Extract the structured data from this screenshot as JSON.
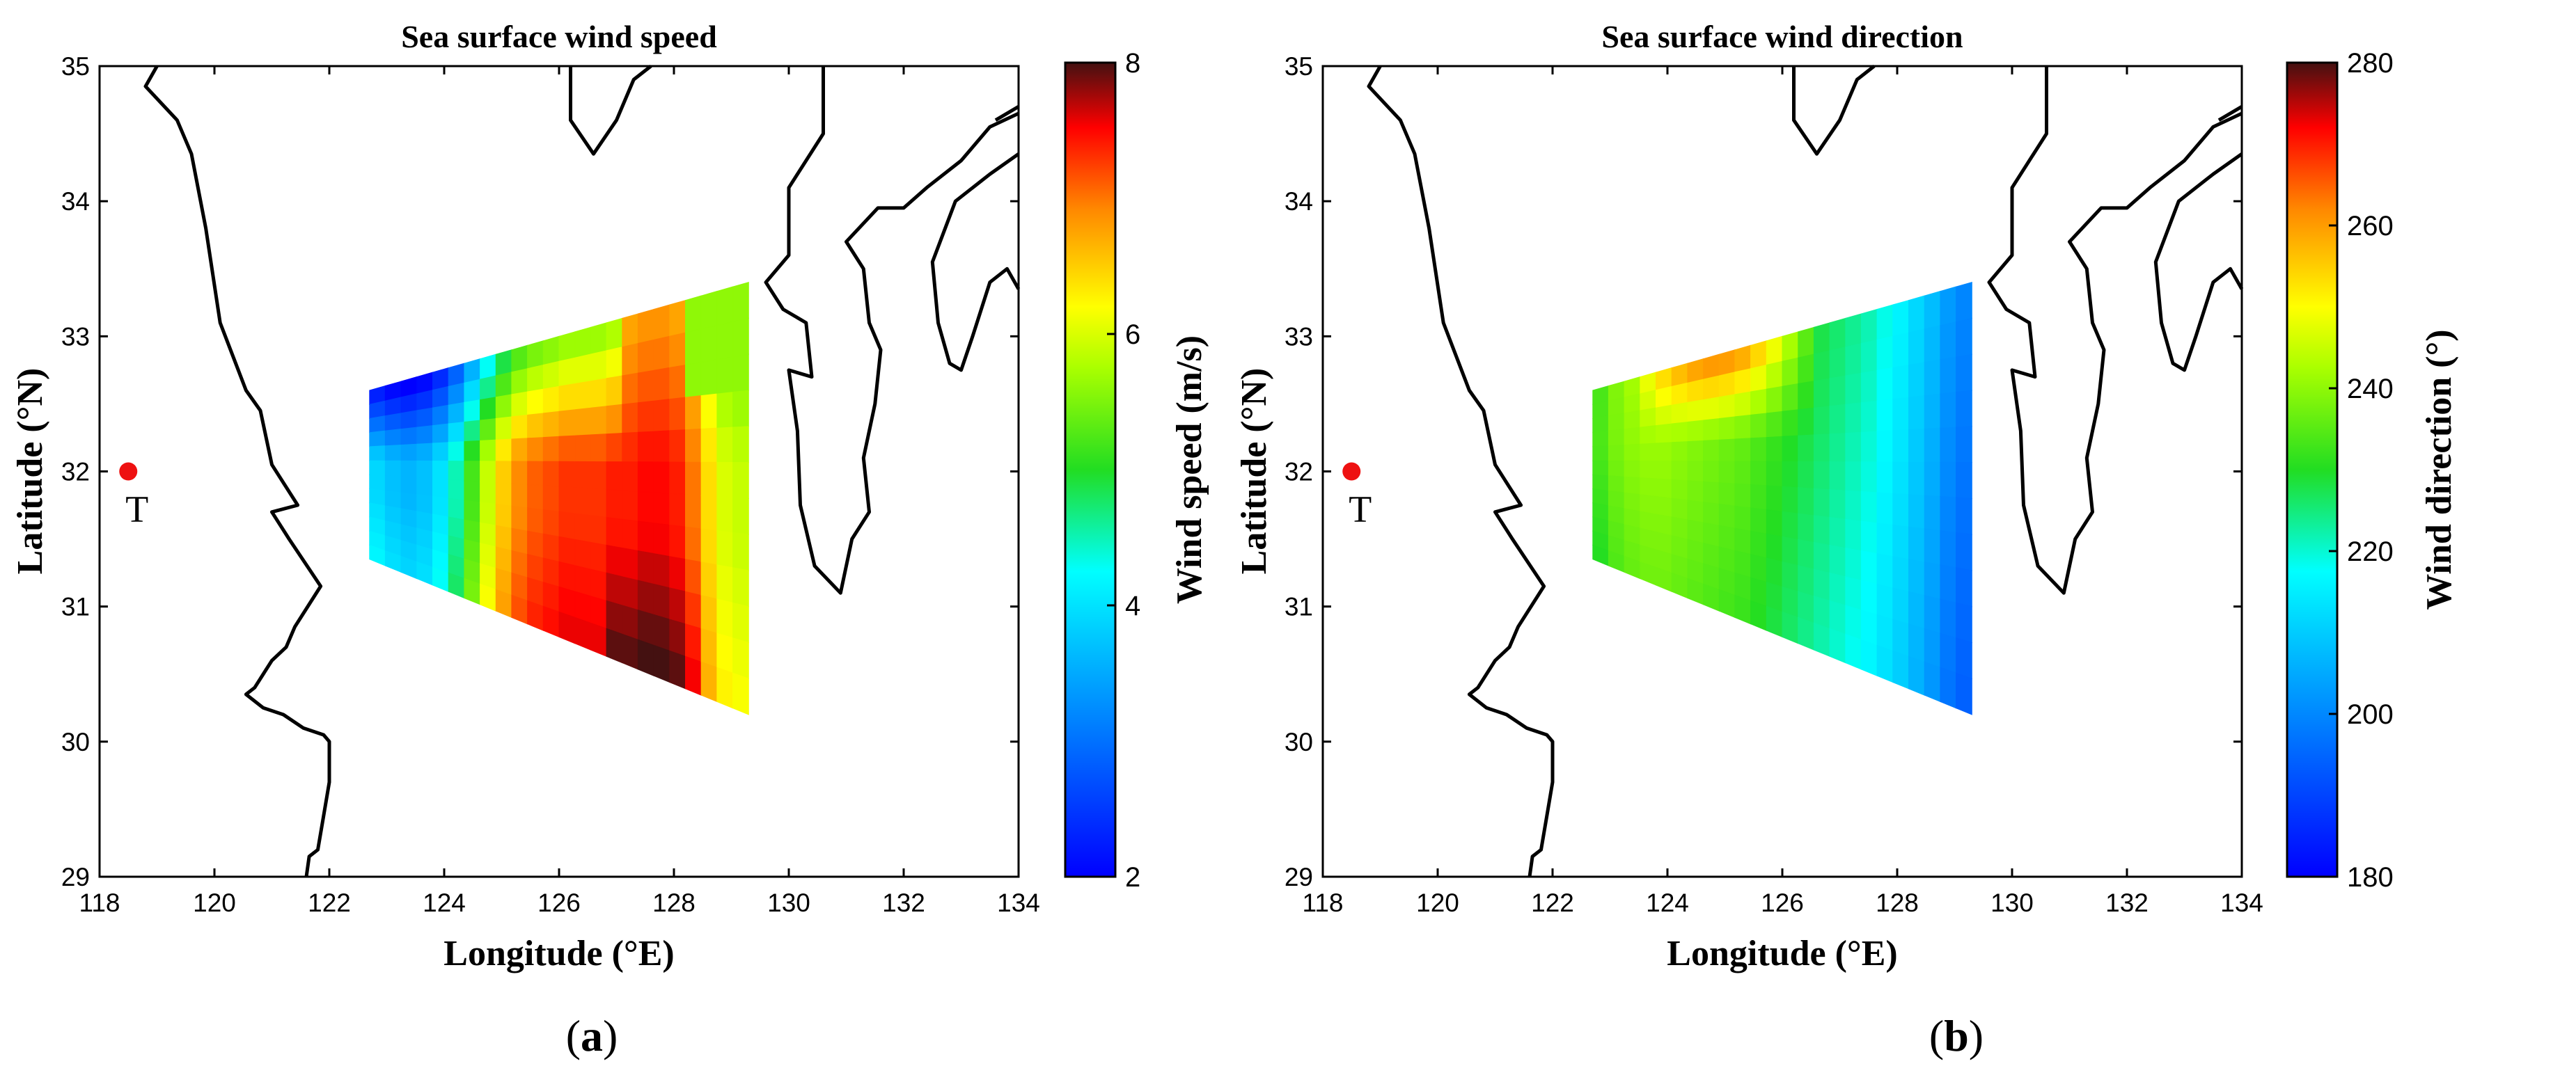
{
  "chart_data": [
    {
      "type": "heatmap",
      "panel": "(a)",
      "panel_letter": "a",
      "title": "Sea surface wind speed",
      "xlabel": "Longitude (°E)",
      "ylabel": "Latitude (°N)",
      "xlim": [
        118,
        134
      ],
      "ylim": [
        29,
        35
      ],
      "xticks": [
        "118",
        "120",
        "122",
        "124",
        "126",
        "128",
        "130",
        "132",
        "134"
      ],
      "yticks": [
        "29",
        "30",
        "31",
        "32",
        "33",
        "34",
        "35"
      ],
      "colorbar": {
        "label": "Wind speed (m/s)",
        "range": [
          2,
          8
        ],
        "ticks": [
          "2",
          "4",
          "6",
          "8"
        ],
        "colormap": "jet"
      },
      "marker": {
        "label": "T",
        "lon": 118.5,
        "lat": 32.0,
        "color": "#ee1111"
      },
      "field": {
        "corners": {
          "nw": [
            122.7,
            32.6
          ],
          "ne": [
            129.3,
            33.4
          ],
          "se": [
            129.3,
            30.2
          ],
          "sw": [
            122.7,
            31.35
          ]
        },
        "columns": 24,
        "rows": 12,
        "column_profile": [
          3.9,
          3.7,
          3.6,
          3.7,
          4.0,
          4.5,
          5.2,
          5.9,
          6.5,
          6.9,
          7.1,
          7.2,
          7.3,
          7.3,
          7.3,
          7.4,
          7.4,
          7.5,
          7.5,
          7.4,
          7.0,
          6.4,
          6.0,
          5.9
        ],
        "top_reduction": 1.8,
        "bottom_increase": 1.5
      },
      "grid": false
    },
    {
      "type": "heatmap",
      "panel": "(b)",
      "panel_letter": "b",
      "title": "Sea surface wind direction",
      "xlabel": "Longitude (°E)",
      "ylabel": "Latitude (°N)",
      "xlim": [
        118,
        134
      ],
      "ylim": [
        29,
        35
      ],
      "xticks": [
        "118",
        "120",
        "122",
        "124",
        "126",
        "128",
        "130",
        "132",
        "134"
      ],
      "yticks": [
        "29",
        "30",
        "31",
        "32",
        "33",
        "34",
        "35"
      ],
      "colorbar": {
        "label": "Wind direction (°)",
        "range": [
          180,
          280
        ],
        "ticks": [
          "180",
          "200",
          "220",
          "240",
          "260",
          "280"
        ],
        "colormap": "jet"
      },
      "marker": {
        "label": "T",
        "lon": 118.5,
        "lat": 32.0,
        "color": "#ee1111"
      },
      "field": {
        "corners": {
          "nw": [
            122.7,
            32.6
          ],
          "ne": [
            129.3,
            33.4
          ],
          "se": [
            129.3,
            30.2
          ],
          "sw": [
            122.7,
            31.35
          ]
        },
        "columns": 24,
        "rows": 12,
        "column_profile": [
          236,
          240,
          242,
          243,
          243,
          242,
          241,
          240,
          239,
          238,
          236,
          234,
          232,
          230,
          228,
          226,
          224,
          222,
          219,
          216,
          212,
          208,
          203,
          200
        ],
        "top_boost": 24,
        "bottom_drop": 6
      },
      "grid": false
    }
  ],
  "coastline": {
    "china": [
      [
        119.0,
        35.0
      ],
      [
        118.8,
        34.85
      ],
      [
        119.35,
        34.6
      ],
      [
        119.6,
        34.35
      ],
      [
        119.85,
        33.8
      ],
      [
        120.1,
        33.1
      ],
      [
        120.55,
        32.6
      ],
      [
        120.8,
        32.45
      ],
      [
        121.0,
        32.05
      ],
      [
        121.45,
        31.75
      ],
      [
        121.0,
        31.7
      ],
      [
        121.3,
        31.5
      ],
      [
        121.85,
        31.15
      ],
      [
        121.4,
        30.85
      ],
      [
        121.25,
        30.7
      ],
      [
        121.0,
        30.6
      ],
      [
        120.7,
        30.4
      ],
      [
        120.55,
        30.35
      ],
      [
        120.85,
        30.25
      ],
      [
        121.2,
        30.2
      ],
      [
        121.55,
        30.1
      ],
      [
        121.9,
        30.05
      ],
      [
        122.0,
        30.0
      ],
      [
        122.0,
        29.7
      ],
      [
        121.9,
        29.45
      ],
      [
        121.8,
        29.2
      ],
      [
        121.65,
        29.15
      ],
      [
        121.6,
        29.0
      ]
    ],
    "korea_north": [
      [
        126.2,
        35.0
      ],
      [
        126.2,
        34.6
      ],
      [
        126.6,
        34.35
      ],
      [
        127.0,
        34.6
      ],
      [
        127.3,
        34.9
      ],
      [
        127.6,
        35.0
      ]
    ],
    "kyushu": [
      [
        130.6,
        35.0
      ],
      [
        130.6,
        34.5
      ],
      [
        130.0,
        34.1
      ],
      [
        130.0,
        33.6
      ],
      [
        129.6,
        33.4
      ],
      [
        129.9,
        33.2
      ],
      [
        130.3,
        33.1
      ],
      [
        130.4,
        32.7
      ],
      [
        130.0,
        32.75
      ],
      [
        130.15,
        32.3
      ],
      [
        130.2,
        31.75
      ],
      [
        130.45,
        31.3
      ],
      [
        130.9,
        31.1
      ],
      [
        131.1,
        31.5
      ],
      [
        131.4,
        31.7
      ],
      [
        131.3,
        32.1
      ],
      [
        131.5,
        32.5
      ],
      [
        131.6,
        32.9
      ],
      [
        131.4,
        33.1
      ],
      [
        131.3,
        33.5
      ],
      [
        131.0,
        33.7
      ],
      [
        131.55,
        33.95
      ],
      [
        132.0,
        33.95
      ],
      [
        132.4,
        34.1
      ],
      [
        133.0,
        34.3
      ],
      [
        133.5,
        34.55
      ],
      [
        134.0,
        34.65
      ]
    ],
    "shikoku_west": [
      [
        134.0,
        34.35
      ],
      [
        133.5,
        34.2
      ],
      [
        132.9,
        34.0
      ],
      [
        132.5,
        33.55
      ],
      [
        132.6,
        33.1
      ],
      [
        132.8,
        32.8
      ],
      [
        133.0,
        32.75
      ],
      [
        133.2,
        33.0
      ],
      [
        133.5,
        33.4
      ],
      [
        133.8,
        33.5
      ],
      [
        134.0,
        33.35
      ]
    ],
    "honshu_tip": [
      [
        134.0,
        34.7
      ],
      [
        133.6,
        34.6
      ]
    ]
  }
}
